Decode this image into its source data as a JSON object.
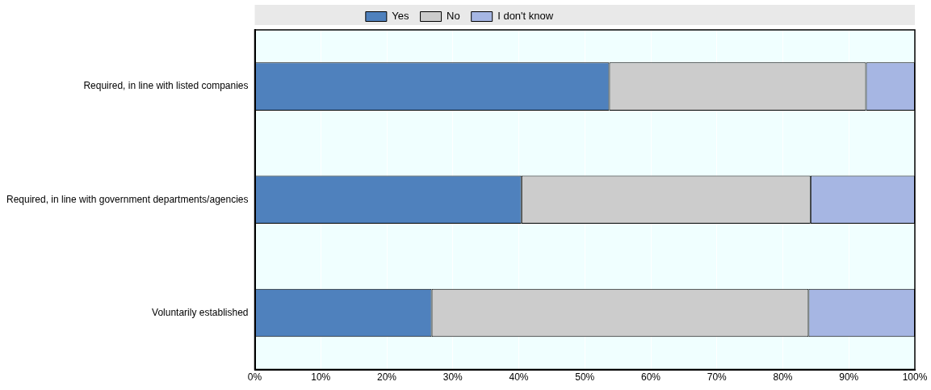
{
  "chart_data": {
    "type": "bar",
    "orientation": "horizontal",
    "stacked": true,
    "categories": [
      "Required, in line with listed companies",
      "Required, in line with government departments/agencies",
      "Voluntarily established"
    ],
    "series": [
      {
        "name": "Yes",
        "color": "#4f81bd",
        "values": [
          53.7,
          40.4,
          26.8
        ]
      },
      {
        "name": "No",
        "color": "#cccccc",
        "values": [
          38.9,
          43.8,
          57.1
        ]
      },
      {
        "name": "I don't know",
        "color": "#a6b6e3",
        "values": [
          7.4,
          15.8,
          16.1
        ]
      }
    ],
    "xlim": [
      0,
      100
    ],
    "xticks": [
      {
        "value": 0,
        "label": "0%"
      },
      {
        "value": 10,
        "label": "10%"
      },
      {
        "value": 20,
        "label": "20%"
      },
      {
        "value": 30,
        "label": "30%"
      },
      {
        "value": 40,
        "label": "40%"
      },
      {
        "value": 50,
        "label": "50%"
      },
      {
        "value": 60,
        "label": "60%"
      },
      {
        "value": 70,
        "label": "70%"
      },
      {
        "value": 80,
        "label": "80%"
      },
      {
        "value": 90,
        "label": "90%"
      },
      {
        "value": 100,
        "label": "100%"
      }
    ],
    "grid": "x",
    "legend": "top"
  }
}
